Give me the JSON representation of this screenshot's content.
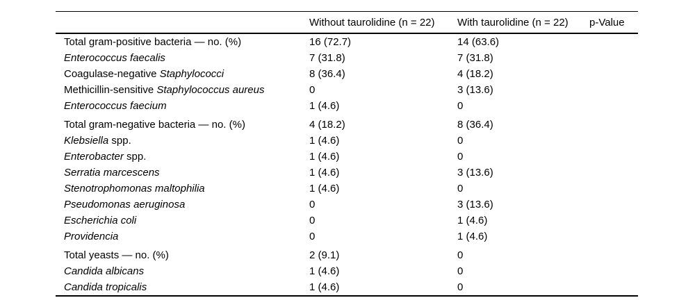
{
  "page": {
    "background_color": "#ffffff",
    "text_color": "#000000"
  },
  "table": {
    "headers": {
      "parameter": "",
      "without": "Without taurolidine (n = 22)",
      "with": "With taurolidine (n = 22)",
      "p_value": "p-Value"
    },
    "rows": [
      {
        "label": [
          {
            "text": "Total gram-positive bacteria — no. (%)",
            "italic": false
          }
        ],
        "without": "16 (72.7)",
        "with": "14 (63.6)",
        "p": "",
        "group_start": false
      },
      {
        "label": [
          {
            "text": "Enterococcus faecalis",
            "italic": true
          }
        ],
        "without": "7 (31.8)",
        "with": "7 (31.8)",
        "p": "",
        "group_start": false
      },
      {
        "label": [
          {
            "text": "Coagulase-negative ",
            "italic": false
          },
          {
            "text": "Staphylococci",
            "italic": true
          }
        ],
        "without": "8 (36.4)",
        "with": "4 (18.2)",
        "p": "",
        "group_start": false
      },
      {
        "label": [
          {
            "text": "Methicillin-sensitive ",
            "italic": false
          },
          {
            "text": "Staphylococcus aureus",
            "italic": true
          }
        ],
        "without": "0",
        "with": "3 (13.6)",
        "p": "",
        "group_start": false
      },
      {
        "label": [
          {
            "text": "Enterococcus faecium",
            "italic": true
          }
        ],
        "without": "1 (4.6)",
        "with": "0",
        "p": "",
        "group_start": false
      },
      {
        "label": [
          {
            "text": "Total gram-negative bacteria — no. (%)",
            "italic": false
          }
        ],
        "without": "4 (18.2)",
        "with": "8 (36.4)",
        "p": "",
        "group_start": true
      },
      {
        "label": [
          {
            "text": "Klebsiella",
            "italic": true
          },
          {
            "text": " spp.",
            "italic": false
          }
        ],
        "without": "1 (4.6)",
        "with": "0",
        "p": "",
        "group_start": false
      },
      {
        "label": [
          {
            "text": "Enterobacter",
            "italic": true
          },
          {
            "text": " spp.",
            "italic": false
          }
        ],
        "without": "1 (4.6)",
        "with": "0",
        "p": "",
        "group_start": false
      },
      {
        "label": [
          {
            "text": "Serratia marcescens",
            "italic": true
          }
        ],
        "without": "1 (4.6)",
        "with": "3 (13.6)",
        "p": "",
        "group_start": false
      },
      {
        "label": [
          {
            "text": "Stenotrophomonas maltophilia",
            "italic": true
          }
        ],
        "without": "1 (4.6)",
        "with": "0",
        "p": "",
        "group_start": false
      },
      {
        "label": [
          {
            "text": "Pseudomonas aeruginosa",
            "italic": true
          }
        ],
        "without": "0",
        "with": "3 (13.6)",
        "p": "",
        "group_start": false
      },
      {
        "label": [
          {
            "text": "Escherichia coli",
            "italic": true
          }
        ],
        "without": "0",
        "with": "1 (4.6)",
        "p": "",
        "group_start": false
      },
      {
        "label": [
          {
            "text": "Providencia",
            "italic": true
          }
        ],
        "without": "0",
        "with": "1 (4.6)",
        "p": "",
        "group_start": false
      },
      {
        "label": [
          {
            "text": "Total yeasts — no. (%)",
            "italic": false
          }
        ],
        "without": "2 (9.1)",
        "with": "0",
        "p": "",
        "group_start": true
      },
      {
        "label": [
          {
            "text": "Candida albicans",
            "italic": true
          }
        ],
        "without": "1 (4.6)",
        "with": "0",
        "p": "",
        "group_start": false
      },
      {
        "label": [
          {
            "text": "Candida tropicalis",
            "italic": true
          }
        ],
        "without": "1 (4.6)",
        "with": "0",
        "p": "",
        "group_start": false
      }
    ]
  }
}
